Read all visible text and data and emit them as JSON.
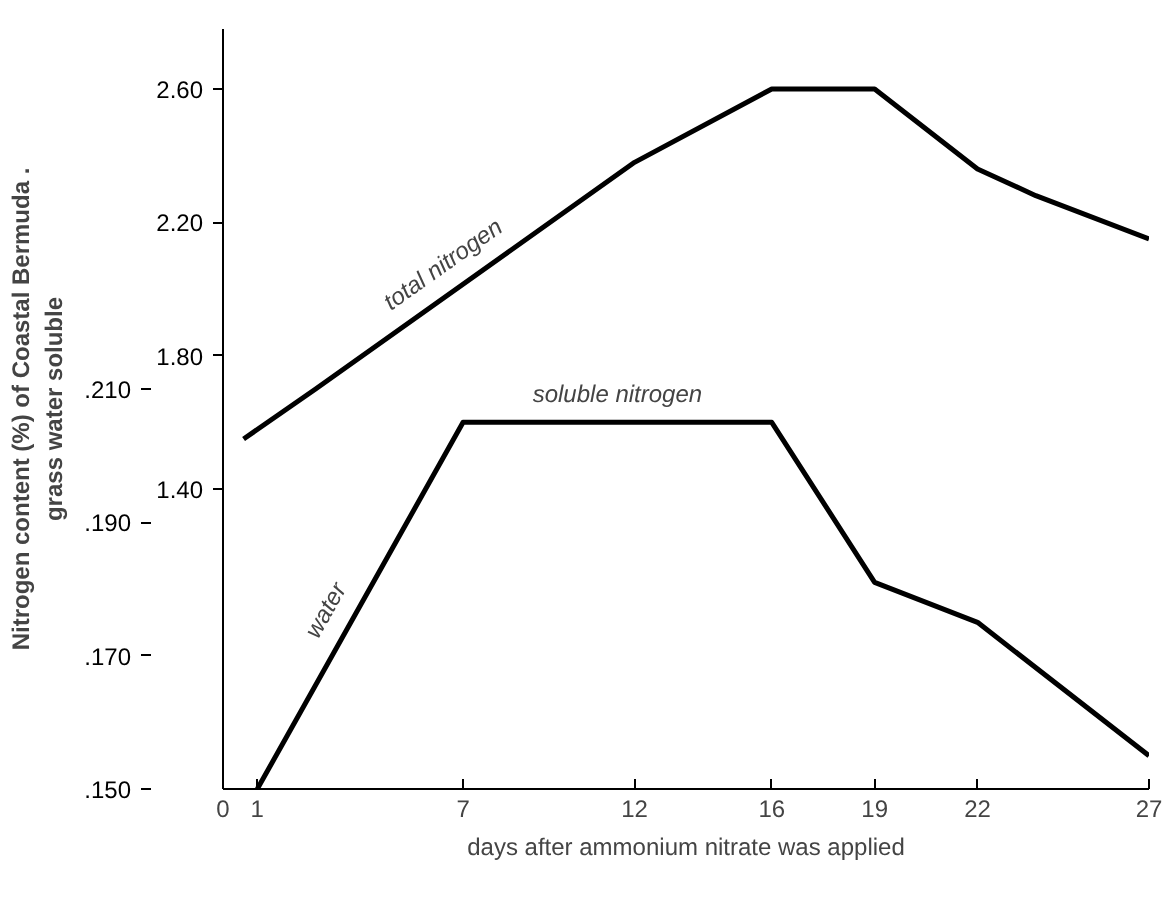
{
  "chart_data": {
    "type": "line",
    "xlabel": "days after ammonium nitrate was applied",
    "ylabel": "Nitrogen content (%) of Coastal Bermuda .\ngrass water soluble",
    "xlim": [
      0,
      27
    ],
    "xticks": [
      0,
      1,
      7,
      12,
      16,
      19,
      22,
      27
    ],
    "ylim": [
      0.15,
      0.264
    ],
    "yticks": [
      {
        "value": 0.15,
        "label": ".150"
      },
      {
        "value": 0.17,
        "label": ".170"
      },
      {
        "value": 0.19,
        "label": ".190"
      },
      {
        "value": 0.21,
        "label": ".210"
      }
    ],
    "y2lim": [
      0.5,
      2.78
    ],
    "y2ticks": [
      {
        "value": 1.4,
        "label": "1.40"
      },
      {
        "value": 1.8,
        "label": "1.80"
      },
      {
        "value": 2.2,
        "label": "2.20"
      },
      {
        "value": 2.6,
        "label": "2.60"
      }
    ],
    "grid": false,
    "marker": "none",
    "line_style": "solid",
    "series": [
      {
        "name": "total nitrogen",
        "color": "#000000",
        "axis": "y2",
        "x": [
          0.6,
          2.7,
          12,
          16,
          19,
          22,
          23.7,
          27
        ],
        "values": [
          1.55,
          1.7,
          2.38,
          2.6,
          2.6,
          2.36,
          2.28,
          2.15
        ]
      },
      {
        "name": "water soluble nitrogen",
        "color": "#000000",
        "x": [
          1,
          7,
          16,
          19,
          22,
          27
        ],
        "values": [
          0.15,
          0.205,
          0.205,
          0.181,
          0.175,
          0.155
        ]
      }
    ]
  }
}
